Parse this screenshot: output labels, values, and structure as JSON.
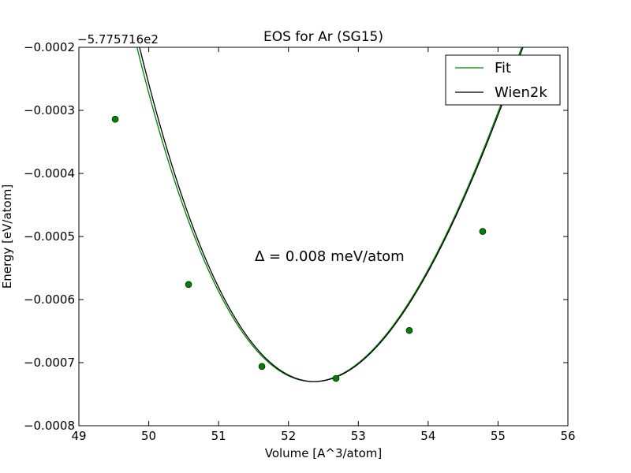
{
  "chart_data": {
    "type": "line",
    "title": "EOS for Ar (SG15)",
    "xlabel": "Volume [A^3/atom]",
    "ylabel": "Energy [eV/atom]",
    "offset_label": "−5.775716e2",
    "annotation": "Δ = 0.008 meV/atom",
    "xlim": [
      49,
      56
    ],
    "ylim": [
      -0.0008,
      -0.0002
    ],
    "x_ticks": [
      49,
      50,
      51,
      52,
      53,
      54,
      55,
      56
    ],
    "x_tick_labels": [
      "49",
      "50",
      "51",
      "52",
      "53",
      "54",
      "55",
      "56"
    ],
    "y_ticks": [
      -0.0008,
      -0.0007,
      -0.0006,
      -0.0005,
      -0.0004,
      -0.0003,
      -0.0002
    ],
    "y_tick_labels": [
      "−0.0008",
      "−0.0007",
      "−0.0006",
      "−0.0005",
      "−0.0004",
      "−0.0003",
      "−0.0002"
    ],
    "grid": false,
    "legend_position": "top-right",
    "series": [
      {
        "name": "Fit",
        "color": "#008000",
        "kind": "curve",
        "eos": {
          "v0": 52.35,
          "e0": -0.00073,
          "a": 7.25e-05,
          "b": -4.4e-06
        },
        "x_range": [
          49.52,
          55.82
        ]
      },
      {
        "name": "Wien2k",
        "color": "#000000",
        "kind": "curve",
        "eos": {
          "v0": 52.37,
          "e0": -0.00073,
          "a": 7.32e-05,
          "b": -4.6e-06
        },
        "x_range": [
          49.5,
          55.85
        ]
      },
      {
        "name": "",
        "color": "#008000",
        "kind": "points",
        "x": [
          49.52,
          50.57,
          51.62,
          52.68,
          53.73,
          54.78
        ],
        "y": [
          -0.000314,
          -0.000576,
          -0.000706,
          -0.000725,
          -0.000649,
          -0.000492
        ]
      }
    ]
  }
}
